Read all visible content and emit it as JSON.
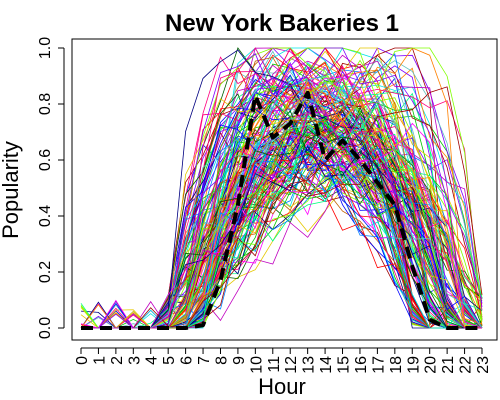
{
  "chart_data": {
    "type": "line",
    "title": "New York Bakeries 1",
    "xlabel": "Hour",
    "ylabel": "Popularity",
    "xlim": [
      0,
      23
    ],
    "ylim": [
      0,
      1.0
    ],
    "x_ticks": [
      "0",
      "1",
      "2",
      "3",
      "4",
      "5",
      "6",
      "7",
      "8",
      "9",
      "10",
      "11",
      "12",
      "13",
      "14",
      "15",
      "16",
      "17",
      "18",
      "19",
      "20",
      "21",
      "22",
      "23"
    ],
    "y_ticks": [
      "0.0",
      "0.2",
      "0.4",
      "0.6",
      "0.8",
      "1.0"
    ],
    "grid": false,
    "legend": "none",
    "background_series_count": 180,
    "background_palette": [
      "#ff0000",
      "#00c800",
      "#0000ff",
      "#00e5e5",
      "#ff00ff",
      "#e5c800",
      "#ff8000",
      "#8000ff",
      "#00ff80",
      "#ff0080",
      "#0080ff",
      "#80ff00",
      "#a00000",
      "#006000",
      "#000080",
      "#c06000",
      "#60c0c0",
      "#c000c0"
    ],
    "series": [
      {
        "style": "dashed",
        "color": "#000000",
        "x": [
          0,
          1,
          2,
          3,
          4,
          5,
          6,
          7,
          8,
          9,
          10,
          11,
          12,
          13,
          14,
          15,
          16,
          17,
          18,
          19,
          20,
          21,
          22,
          23
        ],
        "values": [
          0.0,
          0.0,
          0.0,
          0.0,
          0.0,
          0.0,
          0.0,
          0.01,
          0.17,
          0.44,
          0.83,
          0.68,
          0.73,
          0.84,
          0.6,
          0.67,
          0.6,
          0.52,
          0.44,
          0.22,
          0.03,
          0.0,
          0.0,
          0.0
        ]
      }
    ]
  }
}
